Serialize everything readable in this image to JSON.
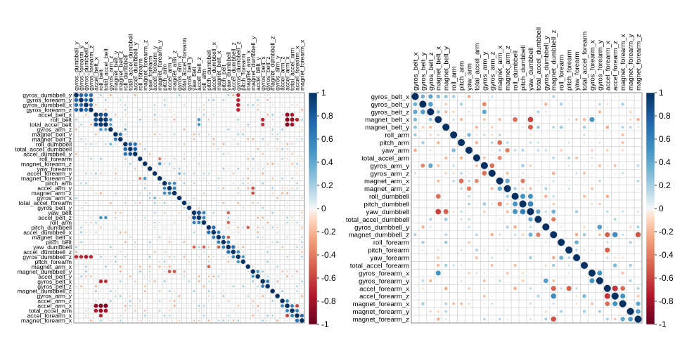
{
  "palette": {
    "neg": "#67001F",
    "mid": "#F7F7F7",
    "pos": "#053061",
    "grid": "#D0D0D0",
    "frame": "#8C8C8C"
  },
  "chart_data": [
    {
      "type": "heatmap",
      "style": "corrplot-circle",
      "variables": [
        "gyros_dumbbell_y",
        "gyros_forearm_y",
        "gyros_dumbbell_x",
        "gyros_forearm_z",
        "accel_belt_x",
        "roll_belt",
        "total_accel_belt",
        "gyros_arm_z",
        "magnet_belt_y",
        "magnet_belt_z",
        "roll_dumbbell",
        "total_accel_dumbbell",
        "accel_dumbbell_y",
        "roll_forearm",
        "magnet_forearm_z",
        "yaw_forearm",
        "accel_forearm_y",
        "magnet_forearm_y",
        "pitch_arm",
        "accel_arm_y",
        "magnet_arm_z",
        "gyros_arm_x",
        "total_accel_forearm",
        "gyros_belt_y",
        "yaw_belt",
        "accel_belt_z",
        "roll_arm",
        "pitch_dumbbell",
        "accel_dumbbell_x",
        "magnet_belt_x",
        "pitch_belt",
        "yaw_dumbbell",
        "accel_dumbbell_z",
        "gyros_dumbbell_z",
        "pitch_forearm",
        "magnet_arm_x",
        "magnet_dumbbell_y",
        "accel_belt_y",
        "gyros_belt_x",
        "gyros_belt_z",
        "magnet_dumbbell_z",
        "gyros_arm_y",
        "accel_arm_z",
        "accel_arm_x",
        "total_accel_arm",
        "accel_forearm_x",
        "magnet_forearm_x"
      ],
      "strong_pairs": [
        {
          "a": 0,
          "b": 1,
          "r": 0.75
        },
        {
          "a": 0,
          "b": 2,
          "r": 0.7
        },
        {
          "a": 0,
          "b": 3,
          "r": 0.7
        },
        {
          "a": 1,
          "b": 2,
          "r": 0.7
        },
        {
          "a": 1,
          "b": 3,
          "r": 0.85
        },
        {
          "a": 2,
          "b": 3,
          "r": 0.7
        },
        {
          "a": 4,
          "b": 5,
          "r": 0.85
        },
        {
          "a": 4,
          "b": 6,
          "r": 0.85
        },
        {
          "a": 5,
          "b": 6,
          "r": 0.95
        },
        {
          "a": 5,
          "b": 7,
          "r": 0.5
        },
        {
          "a": 6,
          "b": 7,
          "r": 0.45
        },
        {
          "a": 8,
          "b": 9,
          "r": 0.65
        },
        {
          "a": 10,
          "b": 11,
          "r": 0.75
        },
        {
          "a": 10,
          "b": 12,
          "r": 0.7
        },
        {
          "a": 11,
          "b": 12,
          "r": 0.8
        },
        {
          "a": 18,
          "b": 19,
          "r": 0.55
        },
        {
          "a": 19,
          "b": 20,
          "r": 0.6
        },
        {
          "a": 18,
          "b": 20,
          "r": 0.55
        },
        {
          "a": 24,
          "b": 25,
          "r": 0.85
        },
        {
          "a": 24,
          "b": 26,
          "r": 0.6
        },
        {
          "a": 25,
          "b": 26,
          "r": 0.6
        },
        {
          "a": 27,
          "b": 28,
          "r": 0.7
        },
        {
          "a": 28,
          "b": 29,
          "r": 0.6
        },
        {
          "a": 29,
          "b": 30,
          "r": 0.6
        },
        {
          "a": 30,
          "b": 31,
          "r": 0.6
        },
        {
          "a": 31,
          "b": 32,
          "r": 0.7
        },
        {
          "a": 32,
          "b": 33,
          "r": 0.55
        },
        {
          "a": 33,
          "b": 34,
          "r": 0.5
        },
        {
          "a": 36,
          "b": 37,
          "r": 0.5
        },
        {
          "a": 38,
          "b": 39,
          "r": 0.6
        },
        {
          "a": 42,
          "b": 43,
          "r": 0.55
        },
        {
          "a": 43,
          "b": 44,
          "r": 0.6
        },
        {
          "a": 44,
          "b": 45,
          "r": 0.6
        },
        {
          "a": 45,
          "b": 46,
          "r": 0.7
        },
        {
          "a": 0,
          "b": 33,
          "r": -0.7
        },
        {
          "a": 1,
          "b": 33,
          "r": -0.7
        },
        {
          "a": 2,
          "b": 33,
          "r": -0.75
        },
        {
          "a": 3,
          "b": 33,
          "r": -0.7
        },
        {
          "a": 5,
          "b": 43,
          "r": -0.9
        },
        {
          "a": 6,
          "b": 43,
          "r": -0.9
        },
        {
          "a": 4,
          "b": 43,
          "r": -0.85
        },
        {
          "a": 5,
          "b": 44,
          "r": -0.85
        },
        {
          "a": 6,
          "b": 44,
          "r": -0.8
        },
        {
          "a": 5,
          "b": 45,
          "r": -0.7
        },
        {
          "a": 4,
          "b": 44,
          "r": -0.75
        },
        {
          "a": 26,
          "b": 31,
          "r": -0.5
        },
        {
          "a": 24,
          "b": 31,
          "r": -0.5
        },
        {
          "a": 19,
          "b": 36,
          "r": -0.55
        },
        {
          "a": 20,
          "b": 36,
          "r": -0.55
        },
        {
          "a": 27,
          "b": 35,
          "r": -0.5
        },
        {
          "a": 43,
          "b": 45,
          "r": -0.6
        },
        {
          "a": 5,
          "b": 38,
          "r": -0.7
        },
        {
          "a": 6,
          "b": 38,
          "r": -0.65
        },
        {
          "a": 5,
          "b": 25,
          "r": 0.5
        },
        {
          "a": 6,
          "b": 25,
          "r": 0.5
        },
        {
          "a": 7,
          "b": 10,
          "r": 0.35
        },
        {
          "a": 31,
          "b": 29,
          "r": -0.5
        },
        {
          "a": 13,
          "b": 17,
          "r": -0.4
        },
        {
          "a": 16,
          "b": 21,
          "r": 0.35
        },
        {
          "a": 14,
          "b": 17,
          "r": 0.5
        }
      ],
      "legend": {
        "ticks": [
          "1",
          "0.8",
          "0.6",
          "0.4",
          "0.2",
          "0",
          "-0.2",
          "-0.4",
          "-0.6",
          "-0.8",
          "-1"
        ]
      }
    },
    {
      "type": "heatmap",
      "style": "corrplot-circle",
      "variables": [
        "gyros_belt_x",
        "gyros_belt_y",
        "gyros_belt_z",
        "magnet_belt_x",
        "magnet_belt_y",
        "roll_arm",
        "pitch_arm",
        "yaw_arm",
        "total_accel_arm",
        "gyros_arm_y",
        "gyros_arm_z",
        "magnet_arm_x",
        "magnet_arm_z",
        "roll_dumbbell",
        "pitch_dumbbell",
        "yaw_dumbbell",
        "total_accel_dumbbell",
        "gyros_dumbbell_y",
        "magnet_dumbbell_z",
        "roll_forearm",
        "pitch_forearm",
        "yaw_forearm",
        "total_accel_forearm",
        "gyros_forearm_x",
        "gyros_forearm_y",
        "accel_forearm_x",
        "accel_forearm_z",
        "magnet_forearm_x",
        "magnet_forearm_y",
        "magnet_forearm_z"
      ],
      "strong_pairs": [
        {
          "a": 0,
          "b": 1,
          "r": 0.35
        },
        {
          "a": 0,
          "b": 2,
          "r": 0.4
        },
        {
          "a": 1,
          "b": 2,
          "r": 0.45
        },
        {
          "a": 0,
          "b": 3,
          "r": 0.3
        },
        {
          "a": 2,
          "b": 3,
          "r": 0.25
        },
        {
          "a": 0,
          "b": 4,
          "r": 0.25
        },
        {
          "a": 9,
          "b": 10,
          "r": -0.45
        },
        {
          "a": 11,
          "b": 12,
          "r": 0.4
        },
        {
          "a": 6,
          "b": 11,
          "r": -0.45
        },
        {
          "a": 7,
          "b": 12,
          "r": -0.4
        },
        {
          "a": 13,
          "b": 14,
          "r": 0.5
        },
        {
          "a": 14,
          "b": 15,
          "r": 0.6
        },
        {
          "a": 13,
          "b": 15,
          "r": 0.5
        },
        {
          "a": 15,
          "b": 16,
          "r": 0.4
        },
        {
          "a": 4,
          "b": 15,
          "r": -0.5
        },
        {
          "a": 3,
          "b": 15,
          "r": -0.6
        },
        {
          "a": 16,
          "b": 18,
          "r": -0.4
        },
        {
          "a": 18,
          "b": 26,
          "r": 0.55
        },
        {
          "a": 18,
          "b": 25,
          "r": -0.5
        },
        {
          "a": 25,
          "b": 26,
          "r": -0.65
        },
        {
          "a": 26,
          "b": 27,
          "r": 0.5
        },
        {
          "a": 27,
          "b": 29,
          "r": 0.4
        },
        {
          "a": 28,
          "b": 29,
          "r": 0.45
        },
        {
          "a": 23,
          "b": 24,
          "r": 0.5
        },
        {
          "a": 20,
          "b": 25,
          "r": -0.5
        },
        {
          "a": 19,
          "b": 21,
          "r": 0.35
        },
        {
          "a": 3,
          "b": 13,
          "r": -0.45
        },
        {
          "a": 5,
          "b": 7,
          "r": 0.3
        },
        {
          "a": 8,
          "b": 11,
          "r": -0.35
        },
        {
          "a": 11,
          "b": 14,
          "r": -0.4
        },
        {
          "a": 2,
          "b": 9,
          "r": 0.4
        },
        {
          "a": 1,
          "b": 9,
          "r": -0.35
        },
        {
          "a": 17,
          "b": 24,
          "r": 0.45
        },
        {
          "a": 15,
          "b": 18,
          "r": 0.35
        },
        {
          "a": 3,
          "b": 23,
          "r": 0.5
        },
        {
          "a": 18,
          "b": 29,
          "r": -0.55
        },
        {
          "a": 22,
          "b": 26,
          "r": 0.3
        },
        {
          "a": 25,
          "b": 27,
          "r": -0.45
        }
      ],
      "legend": {
        "ticks": [
          "1",
          "0.8",
          "0.6",
          "0.4",
          "0.2",
          "0",
          "-0.2",
          "-0.4",
          "-0.6",
          "-0.8",
          "-1"
        ]
      }
    }
  ]
}
